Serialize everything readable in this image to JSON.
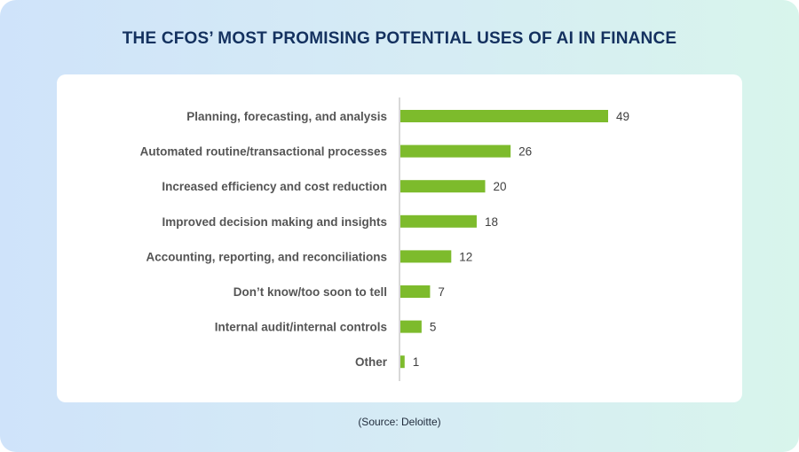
{
  "title": "THE CFOS’ MOST PROMISING POTENTIAL USES OF AI IN FINANCE",
  "source": "(Source: Deloitte)",
  "colors": {
    "bar": "#7dbb2c",
    "axis": "#b0b0b0"
  },
  "chart_data": {
    "type": "bar",
    "orientation": "horizontal",
    "categories": [
      "Planning, forecasting, and analysis",
      "Automated routine/transactional processes",
      "Increased efficiency and cost reduction",
      "Improved decision making and insights",
      "Accounting, reporting, and reconciliations",
      "Don’t know/too soon to tell",
      "Internal audit/internal controls",
      "Other"
    ],
    "values": [
      49,
      26,
      20,
      18,
      12,
      7,
      5,
      1
    ],
    "xlim": [
      0,
      49
    ],
    "grid": false,
    "legend": "none",
    "data_labels": true
  }
}
